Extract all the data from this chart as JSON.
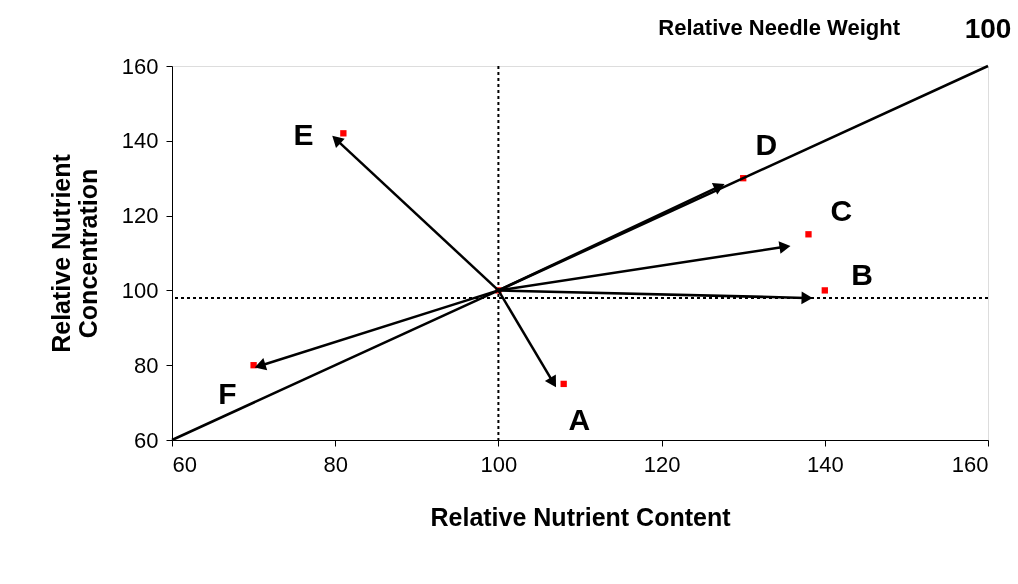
{
  "chart_data": {
    "type": "scatter",
    "xlabel": "Relative Nutrient Content",
    "ylabel": "Relative Nutrient\nConcentration",
    "xlim": [
      60,
      160
    ],
    "ylim": [
      60,
      160
    ],
    "xticks": [
      60,
      80,
      100,
      120,
      140,
      160
    ],
    "yticks": [
      60,
      80,
      100,
      120,
      140,
      160
    ],
    "grid": false,
    "series": [
      {
        "type": "line",
        "marker": "none",
        "color": "#000000",
        "x": [
          60,
          160
        ],
        "values": [
          60,
          160
        ]
      },
      {
        "type": "line",
        "marker": "triangle",
        "color": "#000000",
        "x": [
          100,
          80.3
        ],
        "values": [
          100,
          140
        ]
      },
      {
        "type": "line",
        "marker": "triangle",
        "color": "#000000",
        "x": [
          100,
          126.9
        ],
        "values": [
          100,
          127.6
        ]
      },
      {
        "type": "line",
        "marker": "triangle",
        "color": "#000000",
        "x": [
          100,
          134.9
        ],
        "values": [
          100,
          111.6
        ]
      },
      {
        "type": "line",
        "marker": "triangle",
        "color": "#000000",
        "x": [
          100,
          137.6
        ],
        "values": [
          100,
          98
        ]
      },
      {
        "type": "line",
        "marker": "triangle",
        "color": "#000000",
        "x": [
          100,
          106.6
        ],
        "values": [
          100,
          75.8
        ]
      },
      {
        "type": "line",
        "marker": "triangle",
        "color": "#000000",
        "x": [
          100,
          71
        ],
        "values": [
          100,
          80
        ]
      },
      {
        "marker": "square",
        "color": "#ff0000",
        "x": [
          100,
          108,
          140,
          138,
          130,
          81,
          70
        ],
        "values": [
          100,
          75,
          100,
          115,
          130,
          142,
          80
        ]
      }
    ],
    "ref_lines": [
      {
        "axis": "x",
        "value": 100,
        "line_style": "dotted",
        "color": "#000000"
      },
      {
        "axis": "y",
        "value": 98,
        "line_style": "dotted",
        "color": "#000000"
      }
    ],
    "annotations": [
      "Relative Needle Weight",
      {
        "text": "100",
        "x": 160,
        "y": 160
      },
      {
        "text": "E",
        "x": 81,
        "y": 142
      },
      {
        "text": "D",
        "x": 130,
        "y": 130
      },
      {
        "text": "C",
        "x": 138,
        "y": 115
      },
      {
        "text": "B",
        "x": 140,
        "y": 100
      },
      {
        "text": "A",
        "x": 108,
        "y": 75
      },
      {
        "text": "F",
        "x": 70,
        "y": 80
      }
    ]
  }
}
